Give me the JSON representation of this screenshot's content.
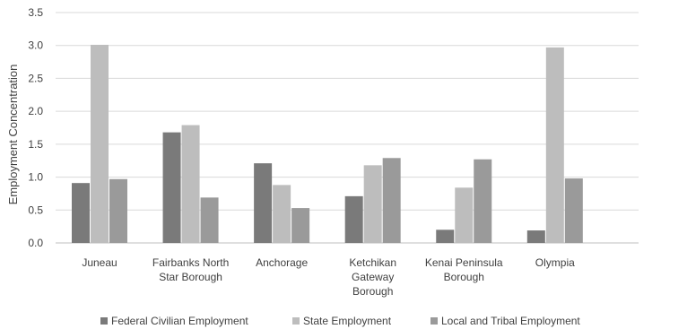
{
  "chart_data": {
    "type": "bar",
    "title": "",
    "xlabel": "",
    "ylabel": "Employment Concentration",
    "ylim": [
      0,
      3.5
    ],
    "yticks": [
      "0.0",
      "0.5",
      "1.0",
      "1.5",
      "2.0",
      "2.5",
      "3.0",
      "3.5"
    ],
    "grid": true,
    "legend": "bottom",
    "categories": [
      [
        "Juneau"
      ],
      [
        "Fairbanks North",
        "Star Borough"
      ],
      [
        "Anchorage"
      ],
      [
        "Ketchikan",
        "Gateway",
        "Borough"
      ],
      [
        "Kenai Peninsula",
        "Borough"
      ],
      [
        "Olympia"
      ]
    ],
    "series": [
      {
        "name": "Federal Civilian Employment",
        "color": "#7a7a7a",
        "values": [
          0.91,
          1.68,
          1.21,
          0.71,
          0.2,
          0.19
        ]
      },
      {
        "name": "State Employment",
        "color": "#bdbdbd",
        "values": [
          3.01,
          1.79,
          0.88,
          1.18,
          0.84,
          2.97
        ]
      },
      {
        "name": "Local and Tribal Employment",
        "color": "#9a9a9a",
        "values": [
          0.97,
          0.69,
          0.53,
          1.29,
          1.27,
          0.98
        ]
      }
    ]
  }
}
